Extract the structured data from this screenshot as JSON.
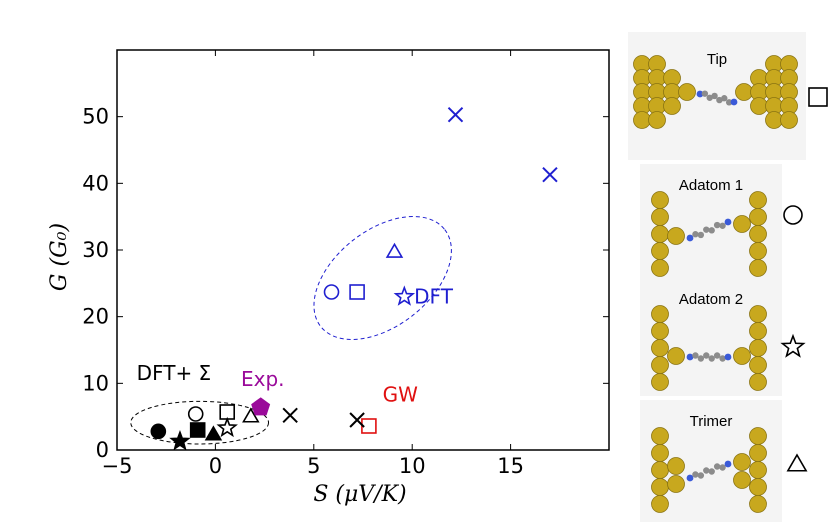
{
  "chart_data": {
    "type": "scatter",
    "xlabel": "S   (μV/K)",
    "ylabel": "G   (G₀)",
    "xlim": [
      -5,
      20
    ],
    "ylim": [
      0,
      60
    ],
    "xticks": [
      -5,
      0,
      5,
      10,
      15
    ],
    "yticks": [
      0,
      10,
      20,
      30,
      40,
      50
    ],
    "grid": false,
    "series": [
      {
        "name": "DFT",
        "color": "#1f1fd0",
        "points": [
          {
            "x": 12.2,
            "y": 50.3,
            "marker": "x"
          },
          {
            "x": 17.0,
            "y": 41.3,
            "marker": "x"
          },
          {
            "x": 9.1,
            "y": 29.8,
            "marker": "triangle"
          },
          {
            "x": 5.9,
            "y": 23.7,
            "marker": "circle"
          },
          {
            "x": 7.2,
            "y": 23.7,
            "marker": "square"
          },
          {
            "x": 9.6,
            "y": 23.0,
            "marker": "star"
          }
        ]
      },
      {
        "name": "GW",
        "color": "#e01010",
        "points": [
          {
            "x": 7.8,
            "y": 3.6,
            "marker": "square"
          }
        ]
      },
      {
        "name": "DFT+Σ",
        "color": "#000000",
        "points": [
          {
            "x": -2.9,
            "y": 2.8,
            "marker": "circle",
            "filled": true
          },
          {
            "x": -1.8,
            "y": 1.3,
            "marker": "star",
            "filled": true
          },
          {
            "x": -1.0,
            "y": 5.4,
            "marker": "circle"
          },
          {
            "x": -0.9,
            "y": 3.0,
            "marker": "square",
            "filled": true
          },
          {
            "x": -0.1,
            "y": 2.4,
            "marker": "triangle",
            "filled": true
          },
          {
            "x": 0.6,
            "y": 5.7,
            "marker": "square"
          },
          {
            "x": 0.6,
            "y": 3.3,
            "marker": "star"
          },
          {
            "x": 1.8,
            "y": 5.1,
            "marker": "triangle"
          },
          {
            "x": 3.8,
            "y": 5.2,
            "marker": "x"
          },
          {
            "x": 7.2,
            "y": 4.5,
            "marker": "x"
          }
        ]
      },
      {
        "name": "Exp.",
        "color": "#9a0a9a",
        "points": [
          {
            "x": 2.3,
            "y": 6.4,
            "marker": "pentagon",
            "filled": true
          }
        ]
      }
    ],
    "annotations": [
      {
        "text": "DFT",
        "x": 10.1,
        "y": 22.0,
        "color": "#1f1fd0"
      },
      {
        "text": "GW",
        "x": 8.5,
        "y": 7.3,
        "color": "#e01010"
      },
      {
        "text": "DFT+ Σ",
        "x": -4.0,
        "y": 10.5,
        "color": "#000000"
      },
      {
        "text": "Exp.",
        "x": 1.3,
        "y": 9.6,
        "color": "#9a0a9a"
      }
    ],
    "ellipses": [
      {
        "group": "DFT",
        "cx": 8.5,
        "cy": 25.8,
        "rx": 4.0,
        "ry": 7.2,
        "rotate": -38,
        "color": "#1f1fd0"
      },
      {
        "group": "DFT+Σ",
        "cx": -0.8,
        "cy": 4.1,
        "rx": 3.5,
        "ry": 3.2,
        "rotate": 0,
        "color": "#000000"
      }
    ]
  },
  "legend_insets": [
    {
      "title": "Tip",
      "symbol": "square"
    },
    {
      "title": "Adatom 1",
      "symbol": "circle"
    },
    {
      "title": "Adatom 2",
      "symbol": "star"
    },
    {
      "title": "Trimer",
      "symbol": "triangle"
    }
  ],
  "colors": {
    "gold": "#c8a81e",
    "gold_dark": "#8a7412",
    "carbon": "#8c8c8c",
    "nitrogen": "#3a5ad8"
  }
}
